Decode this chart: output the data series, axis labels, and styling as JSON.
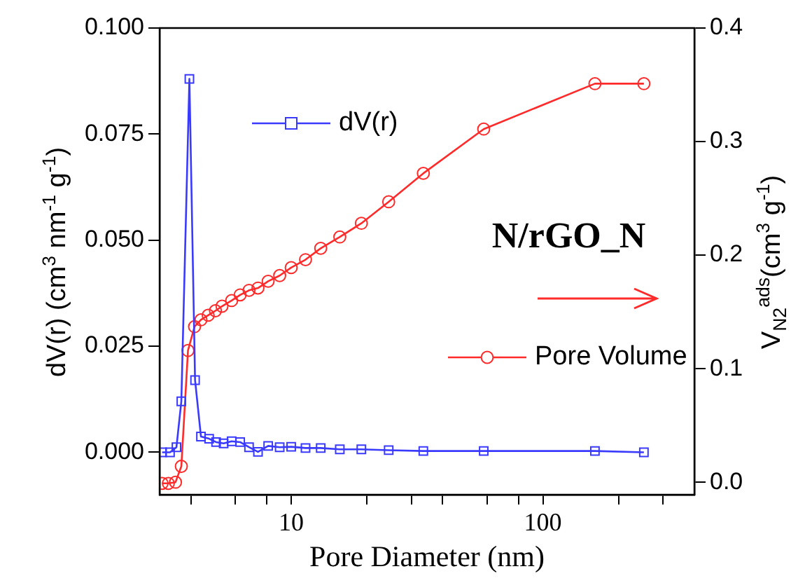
{
  "chart_data": {
    "type": "line",
    "xlabel": "Pore Diameter (nm)",
    "ylabel": "dV(r) (cm$^{3}$ nm$^{-1}$ g$^{-1}$)",
    "y2label": "V$_{N2}$$^{ads}$(cm$^{3}$ g$^{-1}$)",
    "annotations": [
      "N/rGO_N"
    ],
    "log": "x",
    "legend": "right",
    "grid": false,
    "xlim": [
      3,
      400
    ],
    "xticks": [
      {
        "value": 4,
        "label": null
      },
      {
        "value": 6,
        "label": null
      },
      {
        "value": 8,
        "label": null
      },
      10,
      {
        "value": 20,
        "label": null
      },
      {
        "value": 30,
        "label": null
      },
      {
        "value": 40,
        "label": null
      },
      {
        "value": 60,
        "label": null
      },
      {
        "value": 80,
        "label": null
      },
      100,
      {
        "value": 200,
        "label": null
      },
      {
        "value": 300,
        "label": null
      }
    ],
    "ylim": [
      -0.01,
      0.1
    ],
    "yticks": [
      {
        "value": 0,
        "label": "0.000"
      },
      {
        "value": 0.025,
        "label": "0.025"
      },
      {
        "value": 0.05,
        "label": "0.050"
      },
      {
        "value": 0.075,
        "label": "0.075"
      },
      {
        "value": 0.1,
        "label": "0.100"
      }
    ],
    "y2lim": [
      -0.011,
      0.4
    ],
    "y2ticks": [
      {
        "value": 0,
        "label": "0.0"
      },
      {
        "value": 0.1,
        "label": "0.1"
      },
      {
        "value": 0.2,
        "label": "0.2"
      },
      {
        "value": 0.3,
        "label": "0.3"
      },
      {
        "value": 0.4,
        "label": "0.4"
      }
    ],
    "series": [
      {
        "name": "dV(r)",
        "color": "#3a3aff",
        "marker": "square",
        "x": [
          3.07,
          3.3,
          3.5,
          3.66,
          3.94,
          4.15,
          4.38,
          4.72,
          5.03,
          5.39,
          5.8,
          6.27,
          6.8,
          7.38,
          8.1,
          9.0,
          10,
          11.4,
          13.1,
          15.6,
          19.0,
          24.4,
          33.5,
          58.2,
          161,
          252
        ],
        "values": [
          0.0,
          0.0,
          0.0012,
          0.012,
          0.088,
          0.017,
          0.0037,
          0.0032,
          0.0024,
          0.0021,
          0.0026,
          0.0024,
          0.0012,
          0.0001,
          0.0015,
          0.0012,
          0.0013,
          0.001,
          0.001,
          0.0007,
          0.0007,
          0.0005,
          0.0003,
          0.0003,
          0.0003,
          0.0
        ]
      },
      {
        "name": "Pore Volume",
        "color": "#ff2a2a",
        "marker": "circle",
        "axis": "y2",
        "x": [
          3.07,
          3.25,
          3.47,
          3.66,
          3.89,
          4.13,
          4.38,
          4.68,
          5.0,
          5.31,
          5.8,
          6.27,
          6.8,
          7.38,
          8.1,
          9.0,
          10,
          11.4,
          13.1,
          15.6,
          19.0,
          24.4,
          33.5,
          58.2,
          161,
          252
        ],
        "values": [
          -0.001,
          -0.001,
          0.0,
          0.014,
          0.116,
          0.137,
          0.143,
          0.147,
          0.151,
          0.155,
          0.16,
          0.165,
          0.169,
          0.171,
          0.177,
          0.182,
          0.189,
          0.196,
          0.206,
          0.216,
          0.228,
          0.247,
          0.272,
          0.311,
          0.351,
          0.351
        ]
      }
    ]
  }
}
